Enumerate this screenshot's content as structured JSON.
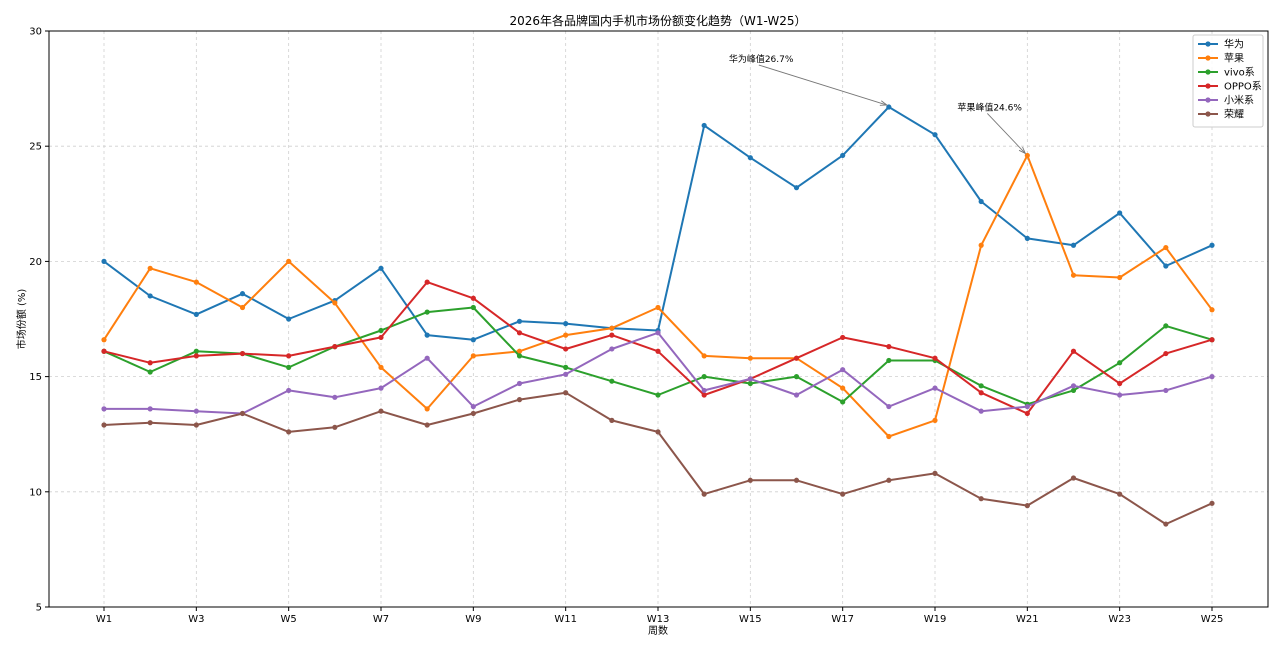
{
  "chart_data": {
    "type": "line",
    "title": "2026年各品牌国内手机市场份额变化趋势（W1-W25）",
    "xlabel": "周数",
    "ylabel": "市场份额 (%)",
    "ylim": [
      5,
      30
    ],
    "yticks": [
      5,
      10,
      15,
      20,
      25,
      30
    ],
    "grid": true,
    "legend_position": "top-right",
    "categories": [
      "W1",
      "W2",
      "W3",
      "W4",
      "W5",
      "W6",
      "W7",
      "W8",
      "W9",
      "W10",
      "W11",
      "W12",
      "W13",
      "W14",
      "W15",
      "W16",
      "W17",
      "W18",
      "W19",
      "W20",
      "W21",
      "W22",
      "W23",
      "W24",
      "W25"
    ],
    "xtick_labels": [
      "W1",
      "W3",
      "W5",
      "W7",
      "W9",
      "W11",
      "W13",
      "W15",
      "W17",
      "W19",
      "W21",
      "W23",
      "W25"
    ],
    "series": [
      {
        "name": "华为",
        "color": "#1f77b4",
        "values": [
          20.0,
          18.5,
          17.7,
          18.6,
          17.5,
          18.3,
          19.7,
          16.8,
          16.6,
          17.4,
          17.3,
          17.1,
          17.0,
          25.9,
          24.5,
          23.2,
          24.6,
          26.7,
          25.5,
          22.6,
          21.0,
          20.7,
          22.1,
          19.8,
          20.7
        ]
      },
      {
        "name": "苹果",
        "color": "#ff7f0e",
        "values": [
          16.6,
          19.7,
          19.1,
          18.0,
          20.0,
          18.2,
          15.4,
          13.6,
          15.9,
          16.1,
          16.8,
          17.1,
          18.0,
          15.9,
          15.8,
          15.8,
          14.5,
          12.4,
          13.1,
          20.7,
          24.6,
          19.4,
          19.3,
          20.6,
          17.9
        ]
      },
      {
        "name": "vivo系",
        "color": "#2ca02c",
        "values": [
          16.1,
          15.2,
          16.1,
          16.0,
          15.4,
          16.3,
          17.0,
          17.8,
          18.0,
          15.9,
          15.4,
          14.8,
          14.2,
          15.0,
          14.7,
          15.0,
          13.9,
          15.7,
          15.7,
          14.6,
          13.8,
          14.4,
          15.6,
          17.2,
          16.6
        ]
      },
      {
        "name": "OPPO系",
        "color": "#d62728",
        "values": [
          16.1,
          15.6,
          15.9,
          16.0,
          15.9,
          16.3,
          16.7,
          19.1,
          18.4,
          16.9,
          16.2,
          16.8,
          16.1,
          14.2,
          14.9,
          15.8,
          16.7,
          16.3,
          15.8,
          14.3,
          13.4,
          16.1,
          14.7,
          16.0,
          16.6
        ]
      },
      {
        "name": "小米系",
        "color": "#9467bd",
        "values": [
          13.6,
          13.6,
          13.5,
          13.4,
          14.4,
          14.1,
          14.5,
          15.8,
          13.7,
          14.7,
          15.1,
          16.2,
          16.9,
          14.4,
          14.9,
          14.2,
          15.3,
          13.7,
          14.5,
          13.5,
          13.7,
          14.6,
          14.2,
          14.4,
          15.0
        ]
      },
      {
        "name": "荣耀",
        "color": "#8c564b",
        "values": [
          12.9,
          13.0,
          12.9,
          13.4,
          12.6,
          12.8,
          13.5,
          12.9,
          13.4,
          14.0,
          14.3,
          13.1,
          12.6,
          9.9,
          10.5,
          10.5,
          9.9,
          10.5,
          10.8,
          9.7,
          9.4,
          10.6,
          9.9,
          8.6,
          9.5
        ]
      }
    ],
    "annotations": [
      {
        "text": "华为峰值26.7%",
        "x": "W18",
        "y": 26.7
      },
      {
        "text": "苹果峰值24.6%",
        "x": "W21",
        "y": 24.6
      }
    ]
  }
}
